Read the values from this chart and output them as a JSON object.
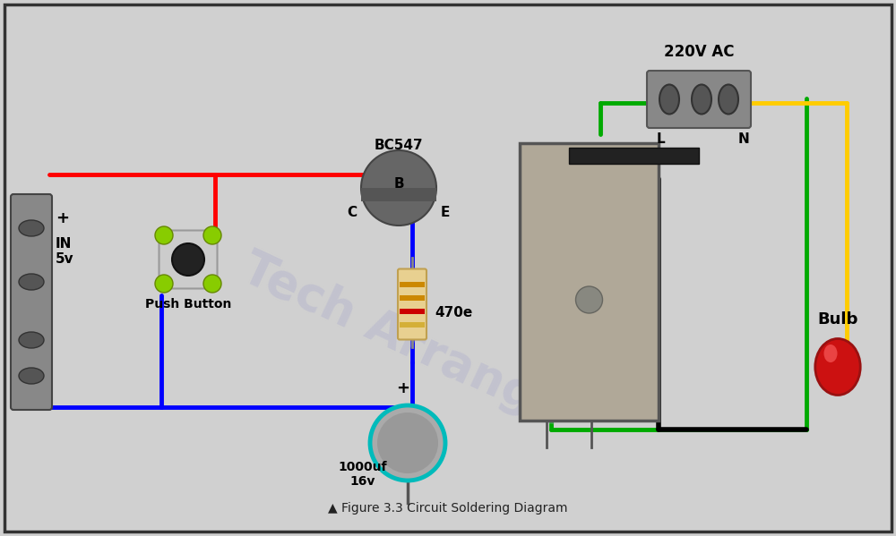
{
  "title": "Figure 3.3 Circuit Soldering Diagram",
  "background_color": "#d0d0d0",
  "wire_red": "#ff0000",
  "wire_blue": "#0000ff",
  "wire_green": "#00aa00",
  "wire_yellow": "#ffcc00",
  "wire_black": "#000000",
  "wire_cyan": "#00cccc",
  "text_color": "#000000",
  "watermark_color": "#aaaacc",
  "labels": {
    "bc547": "BC547",
    "b": "B",
    "c": "C",
    "e": "E",
    "in5v": "IN\n5v",
    "push_button": "Push Button",
    "capacitor": "1000uf\n16v",
    "resistor": "470e",
    "ac220v": "220V AC",
    "l": "L",
    "n": "N",
    "bulb": "Bulb",
    "plus1": "+",
    "plus2": "+"
  }
}
